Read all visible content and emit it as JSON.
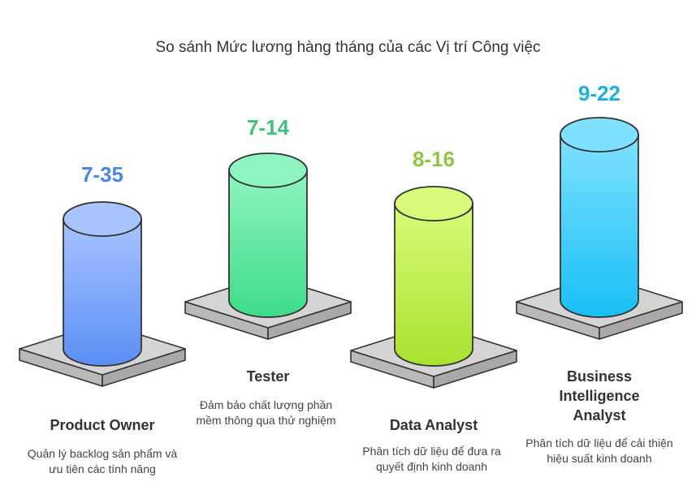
{
  "title": "So sánh Mức lương hàng tháng của các Vị trí Công việc",
  "positions": [
    {
      "range": "7-35",
      "role": "Product Owner",
      "description": "Quản lý backlog sản phẩm và ưu tiên các tính năng",
      "accent": "#4a86e8",
      "fill_top": "#a8c4ff",
      "fill_bottom": "#5b8ef5"
    },
    {
      "range": "7-14",
      "role": "Tester",
      "description": "Đảm bảo chất lượng phần mềm thông qua thử nghiệm",
      "accent": "#3cc47c",
      "fill_top": "#8ff5c0",
      "fill_bottom": "#3ddc8a"
    },
    {
      "range": "8-16",
      "role": "Data Analyst",
      "description": "Phân tích dữ liệu để đưa ra quyết định kinh doanh",
      "accent": "#8ec63f",
      "fill_top": "#d8fb7a",
      "fill_bottom": "#a8e22e"
    },
    {
      "range": "9-22",
      "role": "Business Intelligence Analyst",
      "description": "Phân tích dữ liệu để cải thiện hiệu suất kinh doanh",
      "accent": "#1eaee8",
      "fill_top": "#7fe1ff",
      "fill_bottom": "#18bff5"
    }
  ]
}
